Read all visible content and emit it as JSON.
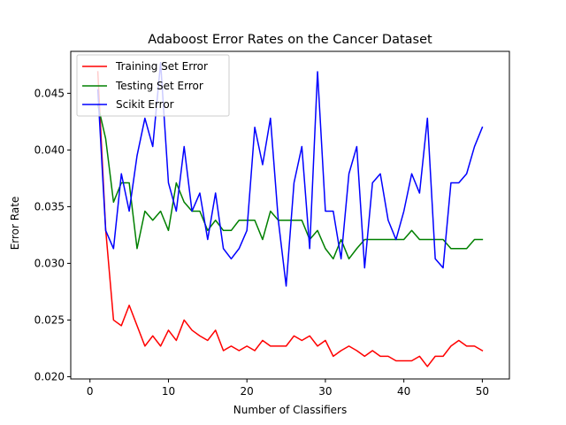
{
  "chart_data": {
    "type": "line",
    "title": "Adaboost Error Rates on the Cancer Dataset",
    "xlabel": "Number of Classifiers",
    "ylabel": "Error Rate",
    "xlim": [
      -2.45,
      53.45
    ],
    "ylim": [
      0.0198,
      0.0487
    ],
    "xticks": [
      0,
      10,
      20,
      30,
      40,
      50
    ],
    "xtick_labels": [
      "0",
      "10",
      "20",
      "30",
      "40",
      "50"
    ],
    "yticks": [
      0.02,
      0.025,
      0.03,
      0.035,
      0.04,
      0.045
    ],
    "ytick_labels": [
      "0.020",
      "0.025",
      "0.030",
      "0.035",
      "0.040",
      "0.045"
    ],
    "grid": false,
    "legend_position": "top-left",
    "x": [
      1,
      2,
      3,
      4,
      5,
      6,
      7,
      8,
      9,
      10,
      11,
      12,
      13,
      14,
      15,
      16,
      17,
      18,
      19,
      20,
      21,
      22,
      23,
      24,
      25,
      26,
      27,
      28,
      29,
      30,
      31,
      32,
      33,
      34,
      35,
      36,
      37,
      38,
      39,
      40,
      41,
      42,
      43,
      44,
      45,
      46,
      47,
      48,
      49,
      50
    ],
    "series": [
      {
        "name": "Training Set Error",
        "color": "#ff0000",
        "values": [
          0.0469,
          0.033,
          0.025,
          0.0245,
          0.0263,
          0.0245,
          0.0227,
          0.0236,
          0.0227,
          0.0241,
          0.0232,
          0.025,
          0.0241,
          0.0236,
          0.0232,
          0.0241,
          0.0223,
          0.0227,
          0.0223,
          0.0227,
          0.0223,
          0.0232,
          0.0227,
          0.0227,
          0.0227,
          0.0236,
          0.0232,
          0.0236,
          0.0227,
          0.0232,
          0.0218,
          0.0223,
          0.0227,
          0.0223,
          0.0218,
          0.0223,
          0.0218,
          0.0218,
          0.0214,
          0.0214,
          0.0214,
          0.0218,
          0.0209,
          0.0218,
          0.0218,
          0.0227,
          0.0232,
          0.0227,
          0.0227,
          0.0223
        ]
      },
      {
        "name": "Testing Set Error",
        "color": "#008000",
        "values": [
          0.044,
          0.041,
          0.0354,
          0.0371,
          0.0371,
          0.0313,
          0.0346,
          0.0338,
          0.0346,
          0.0329,
          0.0371,
          0.0354,
          0.0346,
          0.0346,
          0.0329,
          0.0338,
          0.0329,
          0.0329,
          0.0338,
          0.0338,
          0.0338,
          0.0321,
          0.0346,
          0.0338,
          0.0338,
          0.0338,
          0.0338,
          0.0321,
          0.0329,
          0.0313,
          0.0304,
          0.0321,
          0.0304,
          0.0313,
          0.0321,
          0.0321,
          0.0321,
          0.0321,
          0.0321,
          0.0321,
          0.0329,
          0.0321,
          0.0321,
          0.0321,
          0.0321,
          0.0313,
          0.0313,
          0.0313,
          0.0321,
          0.0321
        ]
      },
      {
        "name": "Scikit Error",
        "color": "#0000ff",
        "values": [
          0.0453,
          0.0329,
          0.0313,
          0.0379,
          0.0346,
          0.0395,
          0.0428,
          0.0403,
          0.0477,
          0.0371,
          0.0346,
          0.0403,
          0.0346,
          0.0362,
          0.0321,
          0.0362,
          0.0313,
          0.0304,
          0.0313,
          0.0329,
          0.042,
          0.0387,
          0.0428,
          0.0338,
          0.028,
          0.0371,
          0.0403,
          0.0313,
          0.0469,
          0.0346,
          0.0346,
          0.0304,
          0.0379,
          0.0403,
          0.0296,
          0.0371,
          0.0379,
          0.0338,
          0.0321,
          0.0346,
          0.0379,
          0.0362,
          0.0428,
          0.0304,
          0.0296,
          0.0371,
          0.0371,
          0.0379,
          0.0403,
          0.042
        ]
      }
    ]
  }
}
